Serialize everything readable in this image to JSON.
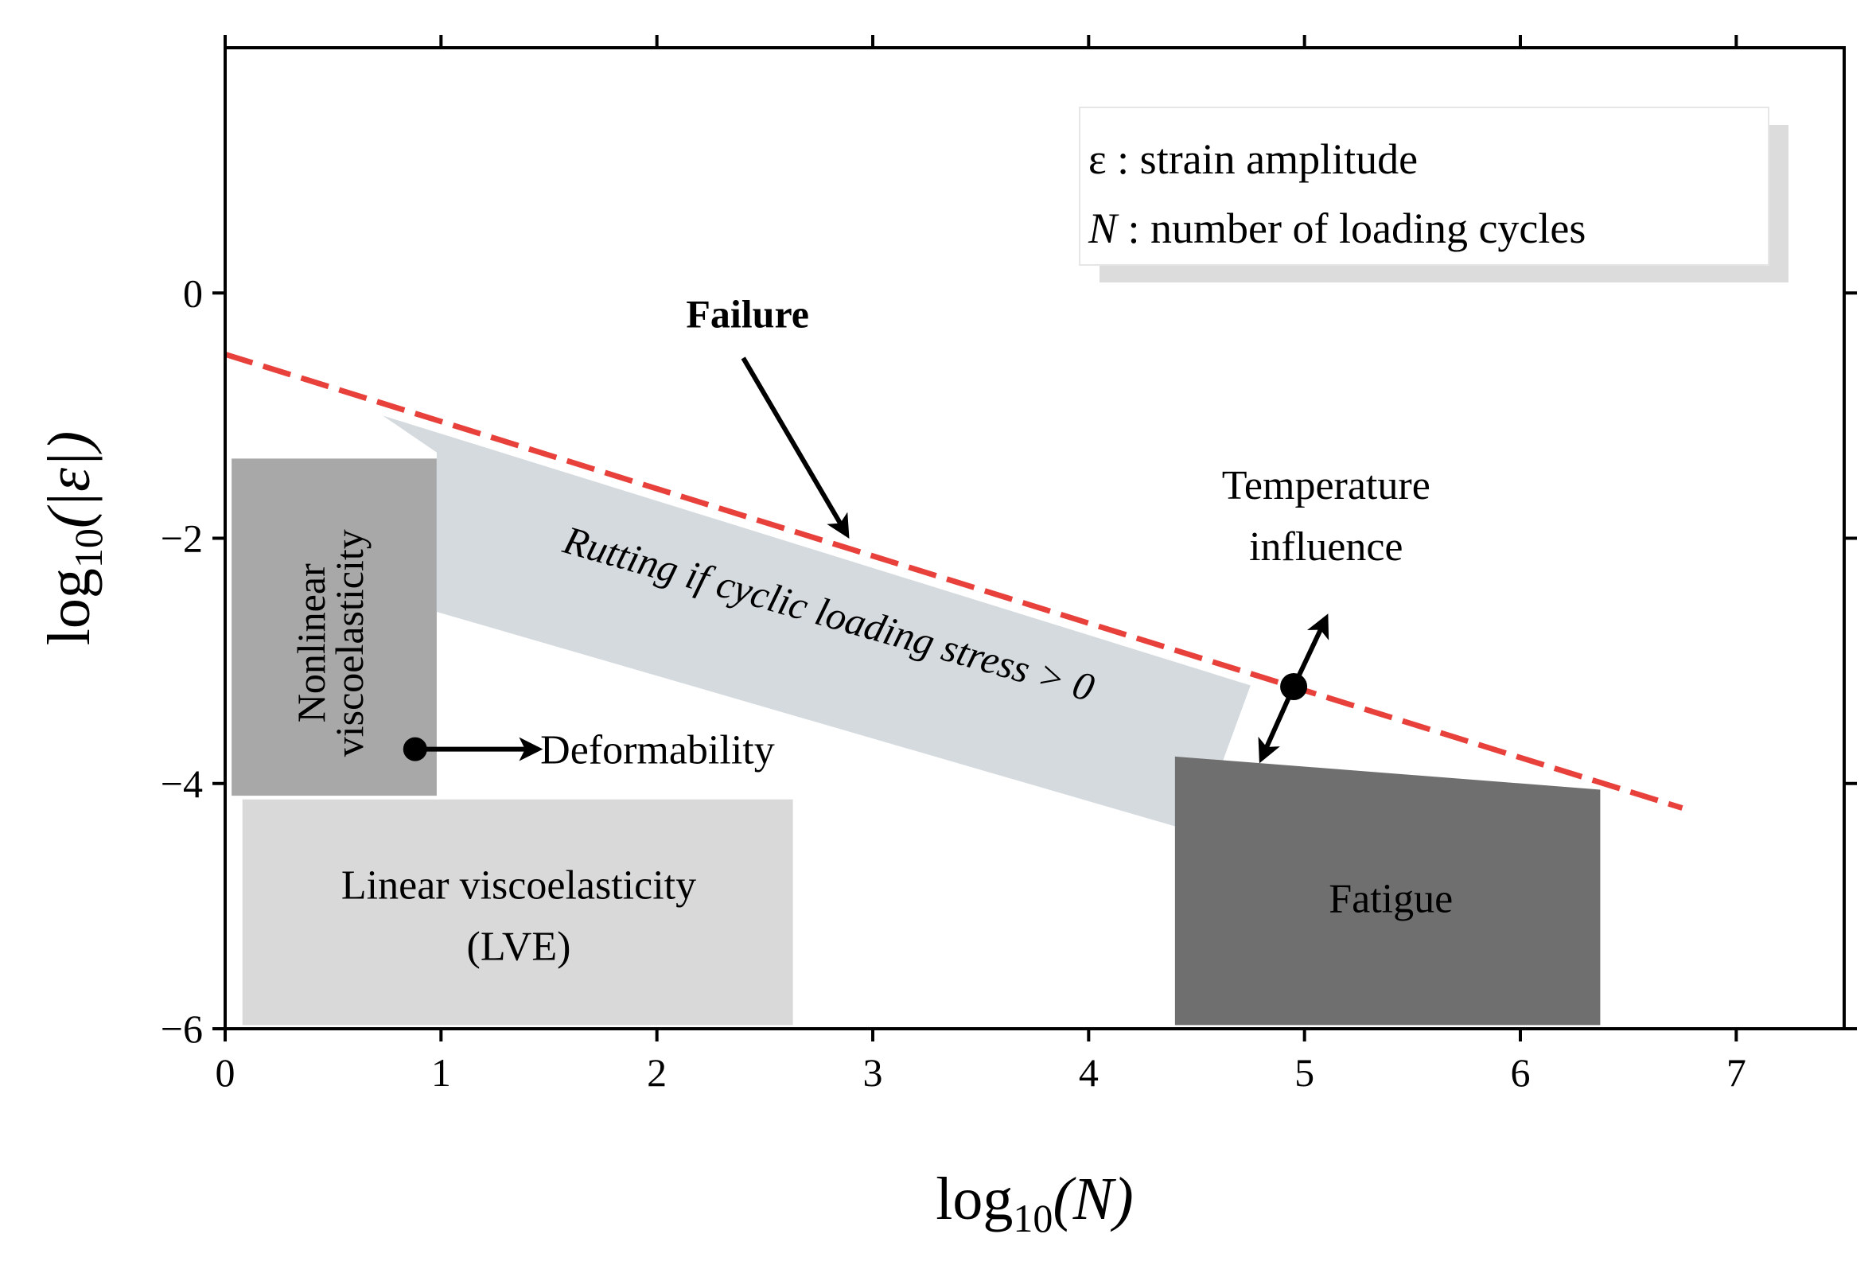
{
  "chart_data": {
    "type": "annotated-region-diagram",
    "xlabel": "log",
    "xlabel_sub": "10",
    "xlabel_arg": "(N)",
    "ylabel": "log",
    "ylabel_sub": "10",
    "ylabel_arg": "(|ε|)",
    "xlim": [
      0,
      7.5
    ],
    "ylim": [
      -6,
      2
    ],
    "xticks": [
      0,
      1,
      2,
      3,
      4,
      5,
      6,
      7
    ],
    "xtick_labels": [
      "0",
      "1",
      "2",
      "3",
      "4",
      "5",
      "6",
      "7"
    ],
    "yticks": [
      0,
      -2,
      -4,
      -6
    ],
    "ytick_labels": [
      "0",
      "−2",
      "−4",
      "−6"
    ],
    "legend": {
      "line1": "ε : strain amplitude",
      "line2_symbol": "N",
      "line2_text": " : number of loading cycles"
    },
    "failure_line": {
      "label": "Failure",
      "x": [
        0,
        6.75
      ],
      "y": [
        -0.5,
        -4.2
      ],
      "color": "#e8413c"
    },
    "regions": [
      {
        "name": "nonlinear",
        "label_line1": "Nonlinear",
        "label_line2": "viscoelasticity",
        "color": "#a8a8a8",
        "polygon": [
          [
            0.03,
            -1.35
          ],
          [
            0.98,
            -1.35
          ],
          [
            0.98,
            -4.1
          ],
          [
            0.03,
            -4.1
          ]
        ]
      },
      {
        "name": "lve",
        "label_line1": "Linear viscoelasticity",
        "label_line2": "(LVE)",
        "color": "#d9d9d9",
        "polygon": [
          [
            0.08,
            -4.13
          ],
          [
            2.63,
            -4.13
          ],
          [
            2.63,
            -5.97
          ],
          [
            0.08,
            -5.97
          ]
        ]
      },
      {
        "name": "rutting",
        "label": "Rutting if cyclic loading stress > 0",
        "color": "#d4dade",
        "polygon": [
          [
            0.73,
            -1.0
          ],
          [
            4.75,
            -3.2
          ],
          [
            4.5,
            -4.4
          ],
          [
            0.98,
            -2.6
          ],
          [
            0.98,
            -1.3
          ]
        ]
      },
      {
        "name": "fatigue",
        "label": "Fatigue",
        "color": "#6f6f6f",
        "polygon": [
          [
            4.4,
            -3.78
          ],
          [
            6.37,
            -4.05
          ],
          [
            6.37,
            -5.97
          ],
          [
            4.4,
            -5.97
          ]
        ]
      }
    ],
    "annotations": {
      "deformability": "Deformability",
      "deformability_point": [
        0.88,
        -3.72
      ],
      "deformability_arrow_to": [
        1.45,
        -3.72
      ],
      "temperature_line1": "Temperature",
      "temperature_line2": "influence",
      "temperature_point": [
        4.95,
        -3.21
      ],
      "temperature_arrow_up": [
        5.1,
        -2.65
      ],
      "temperature_arrow_down": [
        4.8,
        -3.8
      ],
      "failure_arrow_from": [
        2.4,
        -0.53
      ],
      "failure_arrow_to": [
        2.88,
        -1.97
      ]
    }
  }
}
